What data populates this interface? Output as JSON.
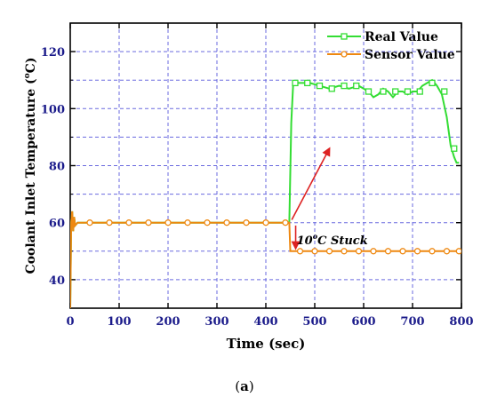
{
  "chart_data": {
    "type": "line",
    "xlabel": "Time (sec)",
    "ylabel": "Coolant Inlet Temperature (",
    "ylabel_sup": "o",
    "ylabel_end": "C)",
    "xlim": [
      0,
      800
    ],
    "ylim": [
      30,
      130
    ],
    "xticks": [
      0,
      100,
      200,
      300,
      400,
      500,
      600,
      700,
      800
    ],
    "yticks": [
      40,
      60,
      80,
      100,
      120
    ],
    "grid": true,
    "legend_position": "top-right",
    "series": [
      {
        "name": "Real Value",
        "color": "#33dd33",
        "marker": "square",
        "x": [
          0,
          2,
          4,
          6,
          8,
          10,
          15,
          25,
          50,
          100,
          150,
          200,
          250,
          300,
          350,
          400,
          445,
          448,
          452,
          456,
          470,
          490,
          510,
          530,
          550,
          570,
          590,
          610,
          620,
          630,
          640,
          650,
          660,
          670,
          680,
          690,
          700,
          710,
          720,
          730,
          740,
          750,
          760,
          770,
          778,
          785,
          790,
          795
        ],
        "y": [
          30,
          60,
          64,
          57,
          62,
          59,
          60,
          60,
          60,
          60,
          60,
          60,
          60,
          60,
          60,
          60,
          60,
          60,
          95,
          109,
          109,
          109,
          108,
          107,
          108,
          107,
          108,
          106,
          104,
          105,
          107,
          106,
          104,
          106,
          106,
          105,
          106,
          106,
          108,
          109,
          110,
          108,
          105,
          97,
          87,
          83,
          81,
          81
        ],
        "marker_x": [
          460,
          485,
          510,
          535,
          560,
          585,
          610,
          640,
          665,
          690,
          715,
          740,
          765,
          785
        ],
        "marker_y": [
          109,
          109,
          108,
          107,
          108,
          108,
          106,
          106,
          106,
          106,
          106,
          109,
          106,
          86
        ]
      },
      {
        "name": "Sensor Value",
        "color": "#ee8811",
        "marker": "circle",
        "x": [
          0,
          2,
          4,
          6,
          8,
          10,
          15,
          25,
          50,
          100,
          150,
          200,
          250,
          300,
          350,
          400,
          448,
          450,
          800
        ],
        "y": [
          30,
          60,
          64,
          57,
          62,
          59,
          60,
          60,
          60,
          60,
          60,
          60,
          60,
          60,
          60,
          60,
          60,
          50,
          50
        ],
        "marker_x": [
          40,
          80,
          120,
          160,
          200,
          240,
          280,
          320,
          360,
          400,
          440,
          470,
          500,
          530,
          560,
          590,
          620,
          650,
          680,
          710,
          740,
          770,
          795
        ],
        "marker_y": [
          60,
          60,
          60,
          60,
          60,
          60,
          60,
          60,
          60,
          60,
          60,
          50,
          50,
          50,
          50,
          50,
          50,
          50,
          50,
          50,
          50,
          50,
          50
        ]
      }
    ],
    "annotations": [
      {
        "text_main": "10",
        "text_sup": "o",
        "text_end": "C Stuck",
        "x": 463,
        "y": 54
      }
    ],
    "arrows": [
      {
        "from": [
          453,
          61
        ],
        "to": [
          530,
          86
        ],
        "color": "#dd2222"
      },
      {
        "from": [
          461,
          59
        ],
        "to": [
          461,
          51
        ],
        "color": "#dd2222"
      }
    ]
  },
  "caption": {
    "open": "(",
    "letter": "a",
    "close": ")"
  }
}
